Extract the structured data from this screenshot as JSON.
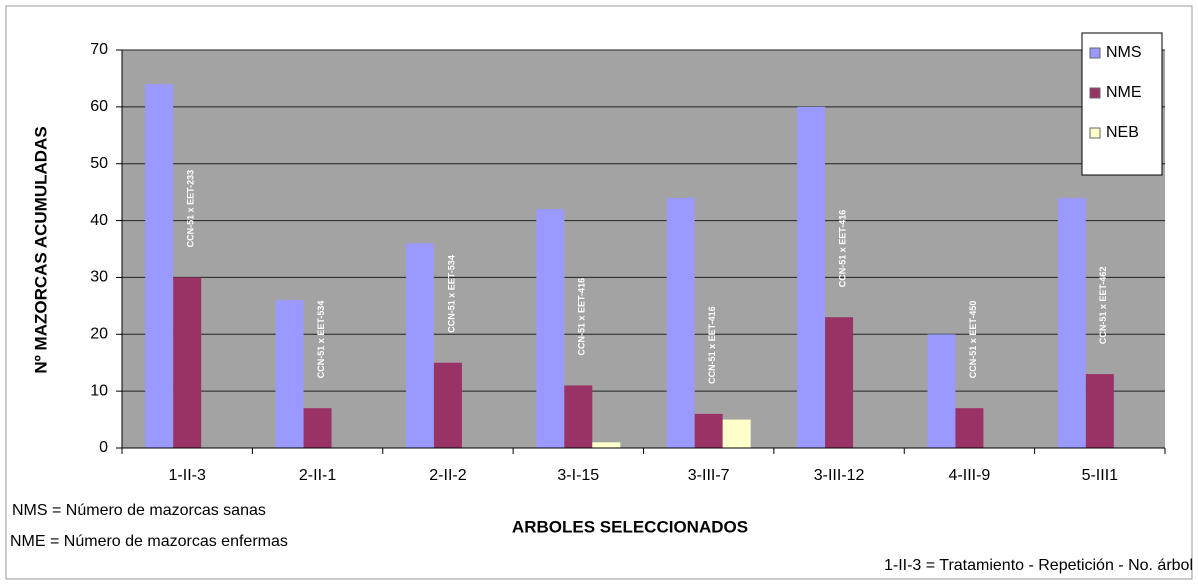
{
  "chart_data": {
    "type": "bar",
    "y_label": "Nº MAZORCAS ACUMULADAS",
    "x_label": "ARBOLES SELECCIONADOS",
    "categories": [
      "1-II-3",
      "2-II-1",
      "2-II-2",
      "3-I-15",
      "3-III-7",
      "3-III-12",
      "4-III-9",
      "5-III1"
    ],
    "series": [
      {
        "name": "NMS",
        "color": "#9999ff",
        "values": [
          64,
          26,
          36,
          42,
          44,
          60,
          20,
          44
        ]
      },
      {
        "name": "NME",
        "color": "#993366",
        "values": [
          30,
          7,
          15,
          11,
          6,
          23,
          7,
          13
        ]
      },
      {
        "name": "NEB",
        "color": "#ffffcc",
        "values": [
          0,
          0,
          0,
          1,
          5,
          0,
          0,
          0
        ]
      }
    ],
    "annotations": [
      "CCN-51 x EET-233",
      "CCN-51 x EET-534",
      "CCN-51 x EET-534",
      "CCN-51 x EET-416",
      "CCN-51 x EET-416",
      "CCN-51 x EET-416",
      "CCN-51 x EET-450",
      "CCN-51 x EET-462"
    ],
    "notes": [
      "NMS = Número de mazorcas sanas",
      "NME = Número de mazorcas enfermas",
      "1-II-3 = Tratamiento  - Repetición -  No. árbol"
    ],
    "ylim": [
      0,
      70
    ],
    "yticks": [
      0,
      10,
      20,
      30,
      40,
      50,
      60,
      70
    ],
    "grid": true,
    "legend": "top-right"
  }
}
